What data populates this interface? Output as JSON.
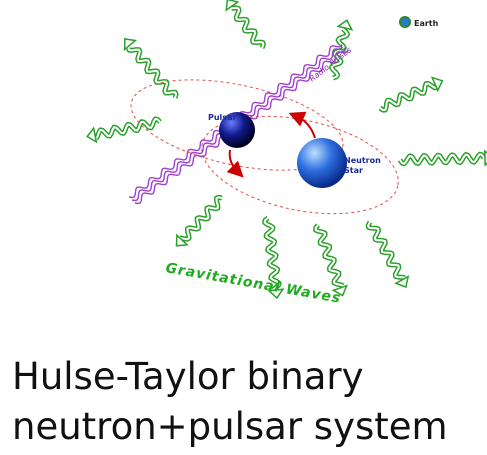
{
  "diagram": {
    "earth": "Earth",
    "pulsar": "Pulsar",
    "neutron_star": [
      "Neutron",
      "Star"
    ],
    "radio_pulses": "Radio Pulses",
    "gravitational_waves": "Gravitational Waves"
  },
  "caption": [
    "Hulse-Taylor binary",
    "neutron+pulsar system"
  ]
}
